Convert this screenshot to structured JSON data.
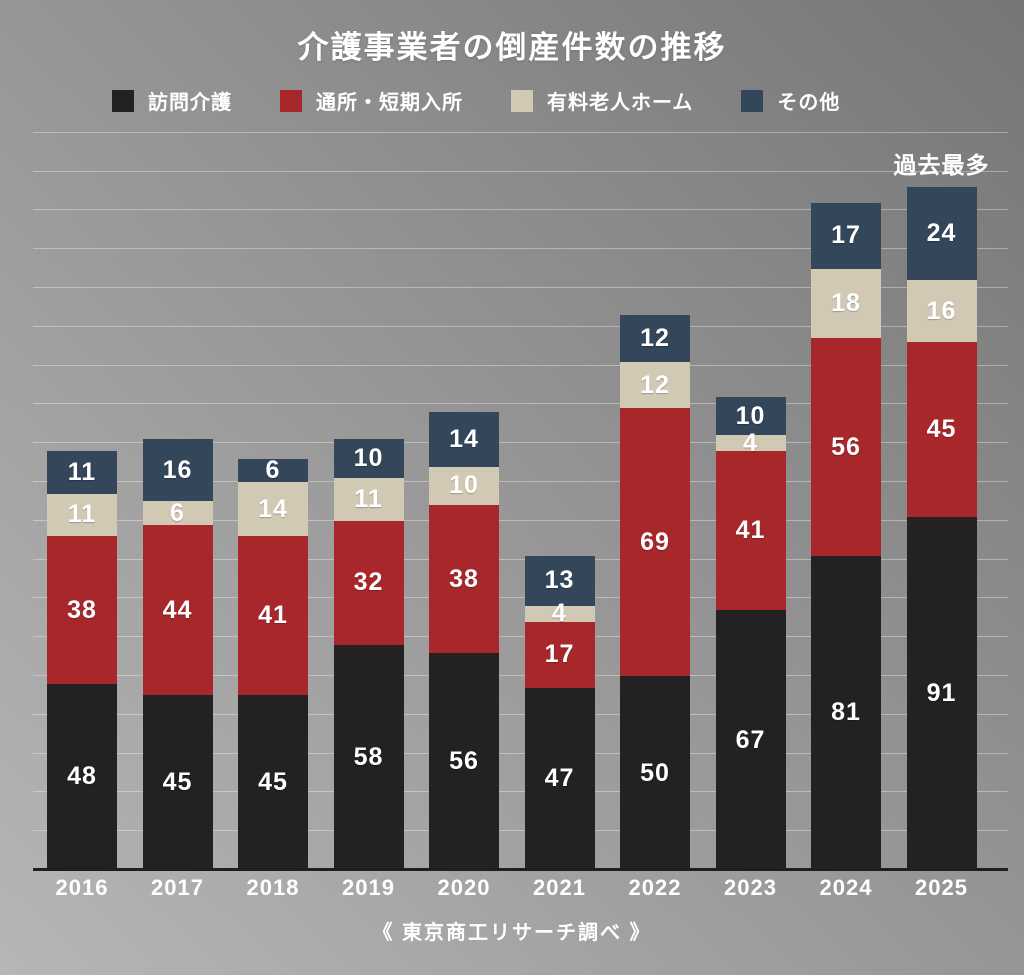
{
  "title": "介護事業者の倒産件数の推移",
  "source": "《 東京商工リサーチ調べ 》",
  "colors": {
    "background_dark": "#767676",
    "background_light": "#b6b6b6",
    "axis": "#1f1f1f",
    "gridline": "rgba(255,255,255,0.35)",
    "text": "#ffffff"
  },
  "chart_data": {
    "type": "bar",
    "stacked": true,
    "title": "介護事業者の倒産件数の推移",
    "xlabel": "",
    "ylabel": "",
    "ylim": [
      0,
      190
    ],
    "gridline_interval": 10,
    "legend_position": "top",
    "categories": [
      "2016",
      "2017",
      "2018",
      "2019",
      "2020",
      "2021",
      "2022",
      "2023",
      "2024",
      "2025"
    ],
    "series": [
      {
        "name": "訪問介護",
        "color": "#242122",
        "values": [
          48,
          45,
          45,
          58,
          56,
          47,
          50,
          67,
          81,
          91
        ]
      },
      {
        "name": "通所・短期入所",
        "color": "#a8272b",
        "values": [
          38,
          44,
          41,
          32,
          38,
          17,
          69,
          41,
          56,
          45
        ]
      },
      {
        "name": "有料老人ホーム",
        "color": "#d2c9b5",
        "values": [
          11,
          6,
          14,
          11,
          10,
          4,
          12,
          4,
          18,
          16
        ]
      },
      {
        "name": "その他",
        "color": "#33465a",
        "values": [
          11,
          16,
          6,
          10,
          14,
          13,
          12,
          10,
          17,
          24
        ]
      }
    ],
    "totals": [
      108,
      111,
      106,
      111,
      118,
      81,
      143,
      122,
      172,
      176
    ],
    "annotation": {
      "category": "2025",
      "text": "過去最多"
    }
  }
}
